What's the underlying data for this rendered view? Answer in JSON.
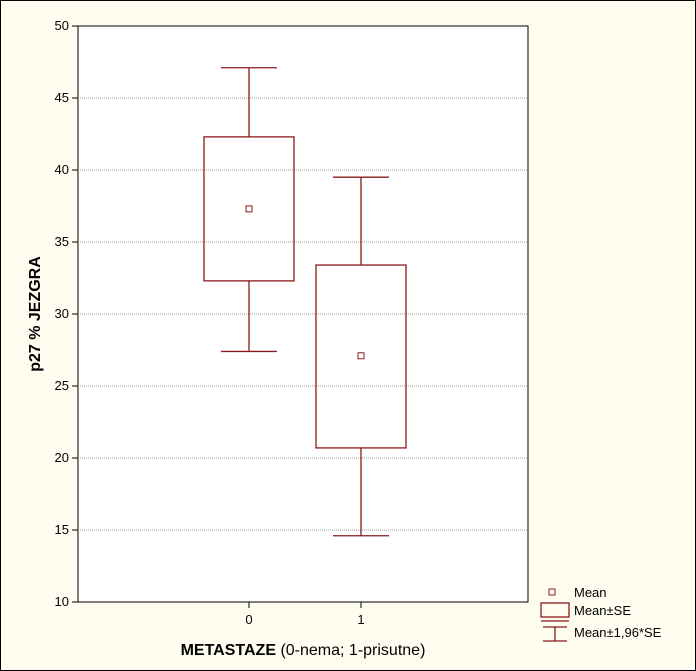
{
  "chart_data": {
    "type": "box",
    "categories": [
      "0",
      "1"
    ],
    "ylabel": "p27 % JEZGRA",
    "xlabel_bold": "METASTAZE",
    "xlabel_rest": " (0-nema; 1-prisutne)",
    "ylim": [
      10,
      50
    ],
    "yticks": [
      10,
      15,
      20,
      25,
      30,
      35,
      40,
      45,
      50
    ],
    "grid": "horizontal-dotted",
    "legend_position": "bottom-right",
    "series_color": "#8b1a1a",
    "boxes": [
      {
        "category": "0",
        "mean": 37.3,
        "se_low": 32.3,
        "se_high": 42.3,
        "ci_low": 27.4,
        "ci_high": 47.1
      },
      {
        "category": "1",
        "mean": 27.1,
        "se_low": 20.7,
        "se_high": 33.4,
        "ci_low": 14.6,
        "ci_high": 39.5
      }
    ],
    "legend": [
      {
        "label": "Mean",
        "symbol": "square-marker"
      },
      {
        "label": "Mean±SE",
        "symbol": "box"
      },
      {
        "label": "Mean±1,96*SE",
        "symbol": "whisker"
      }
    ]
  }
}
